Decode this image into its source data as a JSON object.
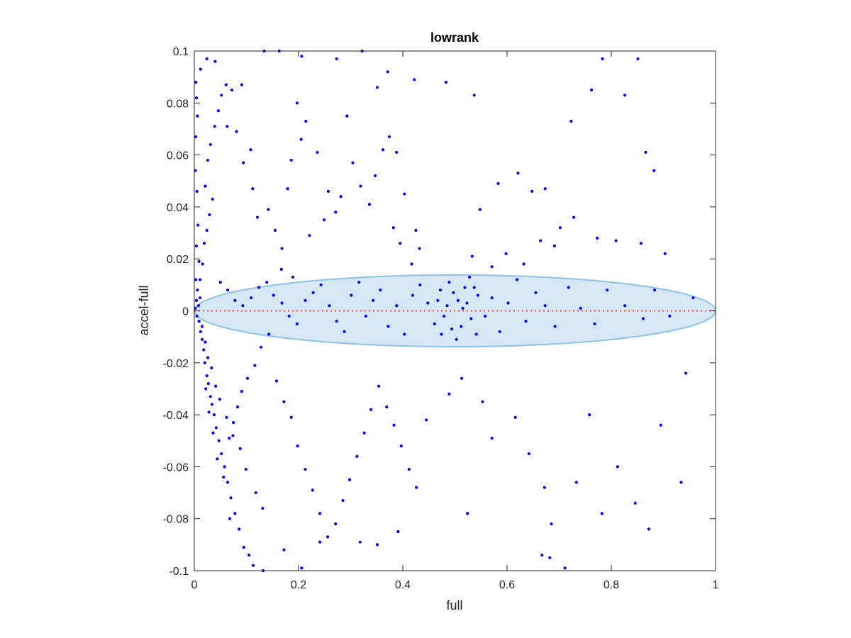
{
  "chart_data": {
    "type": "scatter",
    "title": "lowrank",
    "xlabel": "full",
    "ylabel": "accel-full",
    "xlim": [
      0,
      1
    ],
    "ylim": [
      -0.1,
      0.1
    ],
    "xticks": [
      0,
      0.2,
      0.4,
      0.6,
      0.8,
      1
    ],
    "xtick_labels": [
      "0",
      "0.2",
      "0.4",
      "0.6",
      "0.8",
      "1"
    ],
    "yticks": [
      -0.1,
      -0.08,
      -0.06,
      -0.04,
      -0.02,
      0,
      0.02,
      0.04,
      0.06,
      0.08,
      0.1
    ],
    "ytick_labels": [
      "-0.1",
      "-0.08",
      "-0.06",
      "-0.04",
      "-0.02",
      "0",
      "0.02",
      "0.04",
      "0.06",
      "0.08",
      "0.1"
    ],
    "grid": false,
    "point_color": "#0000ff",
    "reference_line": {
      "y": 0,
      "x_range": [
        0,
        1
      ],
      "style": "dotted",
      "color": "#ff3b30"
    },
    "ellipse": {
      "cx": 0.5,
      "cy": 0,
      "rx": 0.5,
      "ry": 0.0138,
      "fill": "#d6e8f5",
      "stroke": "#8ec1e4"
    },
    "points": [
      [
        0.003,
        0.088
      ],
      [
        0.004,
        0.082
      ],
      [
        0.006,
        0.075
      ],
      [
        0.003,
        0.067
      ],
      [
        0.002,
        0.054
      ],
      [
        0.005,
        0.046
      ],
      [
        0.007,
        0.033
      ],
      [
        0.004,
        0.025
      ],
      [
        0.009,
        0.019
      ],
      [
        0.003,
        0.012
      ],
      [
        0.006,
        0.008
      ],
      [
        0.004,
        0.004
      ],
      [
        0.002,
        0.001
      ],
      [
        0.008,
        0.002
      ],
      [
        0.011,
        0.005
      ],
      [
        0.005,
        -0.002
      ],
      [
        0.009,
        -0.004
      ],
      [
        0.012,
        -0.008
      ],
      [
        0.015,
        -0.011
      ],
      [
        0.018,
        -0.015
      ],
      [
        0.02,
        -0.02
      ],
      [
        0.024,
        -0.025
      ],
      [
        0.027,
        -0.028
      ],
      [
        0.031,
        -0.033
      ],
      [
        0.034,
        -0.036
      ],
      [
        0.038,
        -0.04
      ],
      [
        0.042,
        -0.045
      ],
      [
        0.047,
        -0.05
      ],
      [
        0.052,
        -0.055
      ],
      [
        0.058,
        -0.06
      ],
      [
        0.064,
        -0.066
      ],
      [
        0.07,
        -0.072
      ],
      [
        0.078,
        -0.078
      ],
      [
        0.086,
        -0.084
      ],
      [
        0.095,
        -0.091
      ],
      [
        0.105,
        -0.094
      ],
      [
        0.113,
        -0.098
      ],
      [
        0.132,
        -0.1
      ],
      [
        0.022,
        -0.03
      ],
      [
        0.028,
        -0.039
      ],
      [
        0.036,
        -0.047
      ],
      [
        0.044,
        -0.057
      ],
      [
        0.056,
        -0.064
      ],
      [
        0.068,
        -0.08
      ],
      [
        0.015,
        -0.006
      ],
      [
        0.021,
        -0.012
      ],
      [
        0.026,
        -0.018
      ],
      [
        0.033,
        -0.022
      ],
      [
        0.041,
        -0.029
      ],
      [
        0.049,
        -0.034
      ],
      [
        0.062,
        -0.041
      ],
      [
        0.074,
        -0.048
      ],
      [
        0.088,
        -0.053
      ],
      [
        0.099,
        -0.061
      ],
      [
        0.118,
        -0.07
      ],
      [
        0.131,
        -0.076
      ],
      [
        0.011,
        0.012
      ],
      [
        0.016,
        0.018
      ],
      [
        0.019,
        0.026
      ],
      [
        0.024,
        0.031
      ],
      [
        0.029,
        0.037
      ],
      [
        0.035,
        0.043
      ],
      [
        0.021,
        0.048
      ],
      [
        0.026,
        0.058
      ],
      [
        0.031,
        0.064
      ],
      [
        0.039,
        0.071
      ],
      [
        0.046,
        0.077
      ],
      [
        0.052,
        0.083
      ],
      [
        0.012,
        0.093
      ],
      [
        0.024,
        0.097
      ],
      [
        0.04,
        0.096
      ],
      [
        0.061,
        0.087
      ],
      [
        0.072,
        0.085
      ],
      [
        0.091,
        0.087
      ],
      [
        0.063,
        0.071
      ],
      [
        0.081,
        0.069
      ],
      [
        0.094,
        0.057
      ],
      [
        0.108,
        0.062
      ],
      [
        0.112,
        0.047
      ],
      [
        0.121,
        0.036
      ],
      [
        0.142,
        0.039
      ],
      [
        0.155,
        0.031
      ],
      [
        0.168,
        0.024
      ],
      [
        0.179,
        0.047
      ],
      [
        0.186,
        0.058
      ],
      [
        0.205,
        0.066
      ],
      [
        0.134,
        0.1
      ],
      [
        0.163,
        0.1
      ],
      [
        0.206,
        0.098
      ],
      [
        0.273,
        0.097
      ],
      [
        0.322,
        0.1
      ],
      [
        0.371,
        0.092
      ],
      [
        0.197,
        0.08
      ],
      [
        0.214,
        0.073
      ],
      [
        0.236,
        0.061
      ],
      [
        0.257,
        0.046
      ],
      [
        0.271,
        0.038
      ],
      [
        0.293,
        0.075
      ],
      [
        0.304,
        0.057
      ],
      [
        0.319,
        0.048
      ],
      [
        0.336,
        0.041
      ],
      [
        0.351,
        0.086
      ],
      [
        0.362,
        0.062
      ],
      [
        0.374,
        0.067
      ],
      [
        0.382,
        0.032
      ],
      [
        0.395,
        0.026
      ],
      [
        0.403,
        0.045
      ],
      [
        0.417,
        0.018
      ],
      [
        0.425,
        0.031
      ],
      [
        0.432,
        0.024
      ],
      [
        0.05,
        0.011
      ],
      [
        0.064,
        0.008
      ],
      [
        0.078,
        0.004
      ],
      [
        0.093,
        0.002
      ],
      [
        0.109,
        0.005
      ],
      [
        0.124,
        0.009
      ],
      [
        0.139,
        0.011
      ],
      [
        0.152,
        0.006
      ],
      [
        0.168,
        0.003
      ],
      [
        0.182,
        -0.002
      ],
      [
        0.197,
        -0.005
      ],
      [
        0.213,
        0.004
      ],
      [
        0.228,
        0.007
      ],
      [
        0.243,
        0.01
      ],
      [
        0.259,
        0.002
      ],
      [
        0.273,
        -0.004
      ],
      [
        0.288,
        -0.008
      ],
      [
        0.301,
        0.006
      ],
      [
        0.316,
        0.011
      ],
      [
        0.329,
        -0.002
      ],
      [
        0.343,
        0.004
      ],
      [
        0.357,
        0.008
      ],
      [
        0.372,
        -0.006
      ],
      [
        0.388,
        0.002
      ],
      [
        0.403,
        -0.009
      ],
      [
        0.419,
        0.006
      ],
      [
        0.433,
        0.01
      ],
      [
        0.448,
        0.003
      ],
      [
        0.461,
        -0.005
      ],
      [
        0.472,
        0.008
      ],
      [
        0.485,
        0.002
      ],
      [
        0.494,
        -0.007
      ],
      [
        0.506,
        0.004
      ],
      [
        0.519,
        0.009
      ],
      [
        0.531,
        -0.003
      ],
      [
        0.544,
        0.006
      ],
      [
        0.558,
        -0.002
      ],
      [
        0.571,
        0.005
      ],
      [
        0.586,
        -0.008
      ],
      [
        0.602,
        0.003
      ],
      [
        0.619,
        0.012
      ],
      [
        0.636,
        -0.004
      ],
      [
        0.655,
        0.007
      ],
      [
        0.673,
        0.002
      ],
      [
        0.692,
        -0.006
      ],
      [
        0.718,
        0.009
      ],
      [
        0.741,
        0.001
      ],
      [
        0.768,
        -0.005
      ],
      [
        0.792,
        0.008
      ],
      [
        0.826,
        0.002
      ],
      [
        0.861,
        -0.003
      ],
      [
        0.883,
        0.008
      ],
      [
        0.912,
        -0.002
      ],
      [
        0.957,
        0.005
      ],
      [
        0.474,
        -0.009
      ],
      [
        0.489,
        0.011
      ],
      [
        0.503,
        -0.011
      ],
      [
        0.515,
        0.001
      ],
      [
        0.528,
        0.013
      ],
      [
        0.541,
        -0.009
      ],
      [
        0.467,
        0.004
      ],
      [
        0.479,
        -0.002
      ],
      [
        0.497,
        0.007
      ],
      [
        0.512,
        -0.006
      ],
      [
        0.523,
        0.003
      ],
      [
        0.537,
        0.009
      ],
      [
        0.158,
        -0.027
      ],
      [
        0.172,
        -0.035
      ],
      [
        0.186,
        -0.041
      ],
      [
        0.198,
        -0.052
      ],
      [
        0.213,
        -0.061
      ],
      [
        0.227,
        -0.069
      ],
      [
        0.241,
        -0.078
      ],
      [
        0.256,
        -0.087
      ],
      [
        0.271,
        -0.082
      ],
      [
        0.285,
        -0.073
      ],
      [
        0.298,
        -0.065
      ],
      [
        0.312,
        -0.056
      ],
      [
        0.326,
        -0.047
      ],
      [
        0.339,
        -0.038
      ],
      [
        0.354,
        -0.029
      ],
      [
        0.369,
        -0.037
      ],
      [
        0.383,
        -0.044
      ],
      [
        0.397,
        -0.052
      ],
      [
        0.412,
        -0.061
      ],
      [
        0.426,
        -0.068
      ],
      [
        0.172,
        -0.092
      ],
      [
        0.206,
        -0.099
      ],
      [
        0.241,
        -0.089
      ],
      [
        0.318,
        -0.089
      ],
      [
        0.351,
        -0.09
      ],
      [
        0.391,
        -0.085
      ],
      [
        0.524,
        -0.078
      ],
      [
        0.445,
        -0.042
      ],
      [
        0.489,
        -0.032
      ],
      [
        0.513,
        -0.026
      ],
      [
        0.553,
        -0.035
      ],
      [
        0.571,
        -0.049
      ],
      [
        0.616,
        -0.041
      ],
      [
        0.642,
        -0.055
      ],
      [
        0.672,
        -0.068
      ],
      [
        0.685,
        -0.082
      ],
      [
        0.667,
        -0.094
      ],
      [
        0.682,
        -0.095
      ],
      [
        0.711,
        -0.099
      ],
      [
        0.733,
        -0.066
      ],
      [
        0.758,
        -0.04
      ],
      [
        0.782,
        -0.078
      ],
      [
        0.812,
        -0.06
      ],
      [
        0.846,
        -0.074
      ],
      [
        0.872,
        -0.084
      ],
      [
        0.895,
        -0.044
      ],
      [
        0.934,
        -0.066
      ],
      [
        0.943,
        -0.024
      ],
      [
        0.783,
        0.097
      ],
      [
        0.826,
        0.083
      ],
      [
        0.851,
        0.097
      ],
      [
        0.866,
        0.061
      ],
      [
        0.882,
        0.054
      ],
      [
        0.762,
        0.085
      ],
      [
        0.723,
        0.073
      ],
      [
        0.702,
        0.032
      ],
      [
        0.673,
        0.047
      ],
      [
        0.648,
        0.046
      ],
      [
        0.621,
        0.053
      ],
      [
        0.583,
        0.049
      ],
      [
        0.548,
        0.039
      ],
      [
        0.533,
        0.021
      ],
      [
        0.571,
        0.017
      ],
      [
        0.598,
        0.022
      ],
      [
        0.632,
        0.018
      ],
      [
        0.664,
        0.027
      ],
      [
        0.691,
        0.025
      ],
      [
        0.728,
        0.036
      ],
      [
        0.773,
        0.028
      ],
      [
        0.809,
        0.027
      ],
      [
        0.857,
        0.026
      ],
      [
        0.903,
        0.022
      ],
      [
        0.537,
        0.083
      ],
      [
        0.483,
        0.088
      ],
      [
        0.422,
        0.089
      ],
      [
        0.388,
        0.061
      ],
      [
        0.347,
        0.052
      ],
      [
        0.281,
        0.044
      ],
      [
        0.249,
        0.035
      ],
      [
        0.221,
        0.029
      ],
      [
        0.189,
        0.013
      ],
      [
        0.167,
        0.016
      ],
      [
        0.143,
        -0.009
      ],
      [
        0.128,
        -0.014
      ],
      [
        0.116,
        -0.021
      ],
      [
        0.102,
        -0.026
      ],
      [
        0.091,
        -0.031
      ],
      [
        0.083,
        -0.037
      ],
      [
        0.075,
        -0.043
      ],
      [
        0.067,
        -0.049
      ]
    ]
  }
}
